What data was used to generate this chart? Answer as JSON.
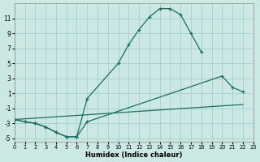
{
  "xlabel": "Humidex (Indice chaleur)",
  "bg_color": "#cce8e4",
  "grid_color": "#a8d4ce",
  "line_color": "#1a6e60",
  "xlim": [
    0,
    23
  ],
  "ylim": [
    -5.5,
    13.0
  ],
  "xticks": [
    0,
    1,
    2,
    3,
    4,
    5,
    6,
    7,
    8,
    9,
    10,
    11,
    12,
    13,
    14,
    15,
    16,
    17,
    18,
    19,
    20,
    21,
    22,
    23
  ],
  "yticks": [
    -5,
    -3,
    -1,
    1,
    3,
    5,
    7,
    9,
    11
  ],
  "curve1_x": [
    0,
    1,
    2,
    3,
    4,
    5,
    6,
    7,
    10,
    11,
    12,
    13,
    14,
    15,
    16,
    17,
    18
  ],
  "curve1_y": [
    -2.5,
    -2.8,
    -3.0,
    -3.5,
    -4.2,
    -4.8,
    -4.8,
    0.3,
    5.0,
    7.5,
    9.5,
    11.2,
    12.3,
    12.3,
    11.5,
    9.0,
    6.5
  ],
  "curve2_x": [
    0,
    1,
    2,
    3,
    4,
    5,
    6,
    7,
    20,
    21,
    22
  ],
  "curve2_y": [
    -2.5,
    -2.8,
    -3.0,
    -3.5,
    -4.2,
    -4.8,
    -4.8,
    -2.8,
    3.3,
    1.8,
    1.2
  ],
  "curve3_x": [
    0,
    22
  ],
  "curve3_y": [
    -2.5,
    -0.5
  ]
}
